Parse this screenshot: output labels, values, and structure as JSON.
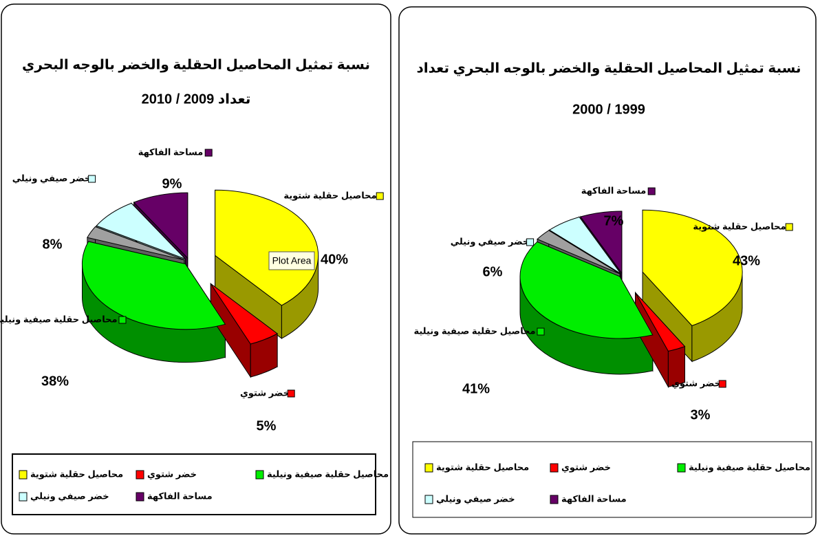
{
  "tooltip": "Plot Area",
  "chart_data": [
    {
      "type": "pie3d",
      "title": "نسبة تمثيل المحاصيل الحقلية والخضر بالوجه البحري",
      "subtitle": "تعداد 2009 / 2010",
      "categories": [
        "محاصيل حقلية شتوية",
        "خضر شتوي",
        "محاصيل حقلية صيفية ونيلية",
        null,
        "خضر صيفي ونيلي",
        "مساحة الفاكهة"
      ],
      "values": [
        40,
        5,
        38,
        3,
        8,
        9
      ],
      "value_labels": [
        "40%",
        "5%",
        "38%",
        null,
        "8%",
        "9%"
      ],
      "colors": [
        "#ffff00",
        "#ff0000",
        "#00ee00",
        "#a0a0a0",
        "#ccffff",
        "#660066"
      ],
      "legend": "bottom"
    },
    {
      "type": "pie3d",
      "title": "نسبة تمثيل المحاصيل الحقلية والخضر بالوجه البحري تعداد",
      "subtitle": "2000 / 1999",
      "categories": [
        "محاصيل حقلية شتوية",
        "خضر شتوي",
        "محاصيل حقلية صيفية ونيلية",
        null,
        "خضر صيفي ونيلي",
        "مساحة الفاكهة"
      ],
      "values": [
        43,
        3,
        41,
        3,
        6,
        7
      ],
      "value_labels": [
        "43%",
        "3%",
        "41%",
        null,
        "6%",
        "7%"
      ],
      "colors": [
        "#ffff00",
        "#ff0000",
        "#00ee00",
        "#a0a0a0",
        "#ccffff",
        "#660066"
      ],
      "legend": "bottom"
    }
  ]
}
